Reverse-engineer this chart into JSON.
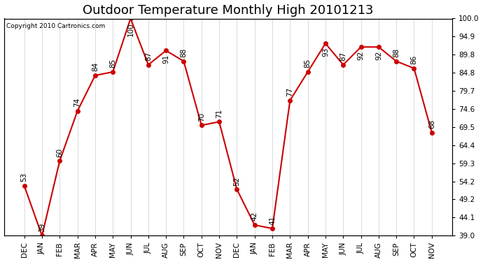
{
  "title": "Outdoor Temperature Monthly High 20101213",
  "copyright": "Copyright 2010 Cartronics.com",
  "categories": [
    "DEC",
    "JAN",
    "FEB",
    "MAR",
    "APR",
    "MAY",
    "JUN",
    "JUL",
    "AUG",
    "SEP",
    "OCT",
    "NOV",
    "DEC",
    "JAN",
    "FEB",
    "MAR",
    "APR",
    "MAY",
    "JUN",
    "JUL",
    "AUG",
    "SEP",
    "OCT",
    "NOV"
  ],
  "values": [
    53,
    39,
    60,
    74,
    84,
    85,
    100,
    87,
    91,
    88,
    70,
    71,
    52,
    42,
    41,
    77,
    85,
    93,
    87,
    92,
    92,
    88,
    86,
    68
  ],
  "line_color": "#cc0000",
  "marker_color": "#cc0000",
  "background_color": "#ffffff",
  "grid_color": "#cccccc",
  "ylim": [
    39.0,
    100.0
  ],
  "yticks_right": [
    39.0,
    44.1,
    49.2,
    54.2,
    59.3,
    64.4,
    69.5,
    74.6,
    79.7,
    84.8,
    89.8,
    94.9,
    100.0
  ],
  "title_fontsize": 13,
  "label_fontsize": 7.5,
  "copyright_fontsize": 6.5
}
